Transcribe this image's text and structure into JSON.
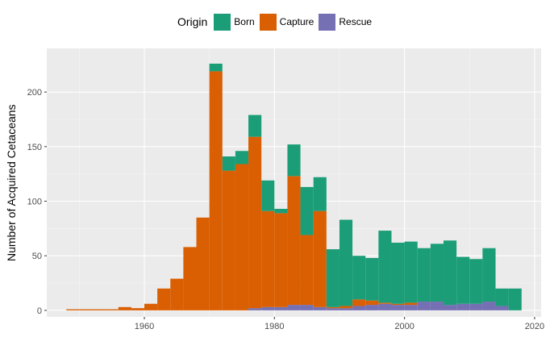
{
  "chart_data": {
    "type": "histogram",
    "stacked": true,
    "xlabel": "",
    "ylabel": "Number of Acquired Cetaceans",
    "xlim": [
      1945,
      2021
    ],
    "ylim": [
      -6,
      240
    ],
    "x_ticks": [
      1960,
      1980,
      2000,
      2020
    ],
    "y_ticks": [
      0,
      50,
      100,
      150,
      200
    ],
    "bin_width": 2,
    "bin_starts": [
      1948,
      1950,
      1952,
      1954,
      1956,
      1958,
      1960,
      1962,
      1964,
      1966,
      1968,
      1970,
      1972,
      1974,
      1976,
      1978,
      1980,
      1982,
      1984,
      1986,
      1988,
      1990,
      1992,
      1994,
      1996,
      1998,
      2000,
      2002,
      2004,
      2006,
      2008,
      2010,
      2012,
      2014,
      2016
    ],
    "series": [
      {
        "name": "Rescue",
        "color": "#7570B3",
        "values": [
          0,
          0,
          0,
          0,
          0,
          0,
          0,
          0,
          0,
          0,
          0,
          0,
          0,
          0,
          2,
          3,
          3,
          5,
          5,
          3,
          2,
          2,
          4,
          5,
          6,
          5,
          5,
          8,
          8,
          5,
          6,
          6,
          8,
          4,
          0
        ]
      },
      {
        "name": "Capture",
        "color": "#D95F02",
        "values": [
          1,
          1,
          1,
          1,
          3,
          2,
          6,
          20,
          29,
          58,
          85,
          219,
          128,
          134,
          157,
          88,
          86,
          118,
          64,
          88,
          1,
          2,
          6,
          4,
          1,
          1,
          2,
          0,
          0,
          0,
          0,
          0,
          0,
          0,
          0
        ]
      },
      {
        "name": "Born",
        "color": "#1B9E77",
        "values": [
          0,
          0,
          0,
          0,
          0,
          0,
          0,
          0,
          0,
          0,
          0,
          7,
          13,
          12,
          20,
          28,
          4,
          29,
          44,
          31,
          53,
          79,
          40,
          39,
          66,
          56,
          56,
          49,
          53,
          59,
          43,
          41,
          49,
          16,
          20
        ]
      }
    ],
    "legend": {
      "title": "Origin",
      "position": "top",
      "entries": [
        "Born",
        "Capture",
        "Rescue"
      ]
    },
    "grid": true
  }
}
